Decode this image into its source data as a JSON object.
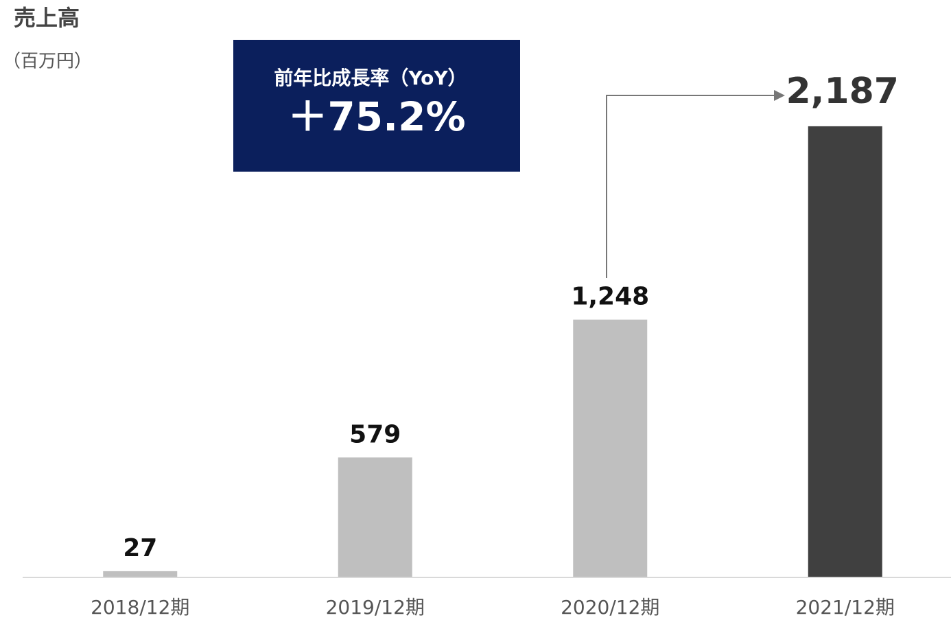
{
  "chart_data": {
    "type": "bar",
    "title": "売上高",
    "subtitle": "（百万円）",
    "categories": [
      "2018/12期",
      "2019/12期",
      "2020/12期",
      "2021/12期"
    ],
    "values": [
      27,
      579,
      1248,
      2187
    ],
    "value_labels": [
      "27",
      "579",
      "1,248",
      "2,187"
    ],
    "colors": [
      "#bfbfbf",
      "#bfbfbf",
      "#bfbfbf",
      "#404040"
    ],
    "annotation": {
      "title": "前年比成長率（YoY）",
      "text": "＋75.2%"
    }
  }
}
